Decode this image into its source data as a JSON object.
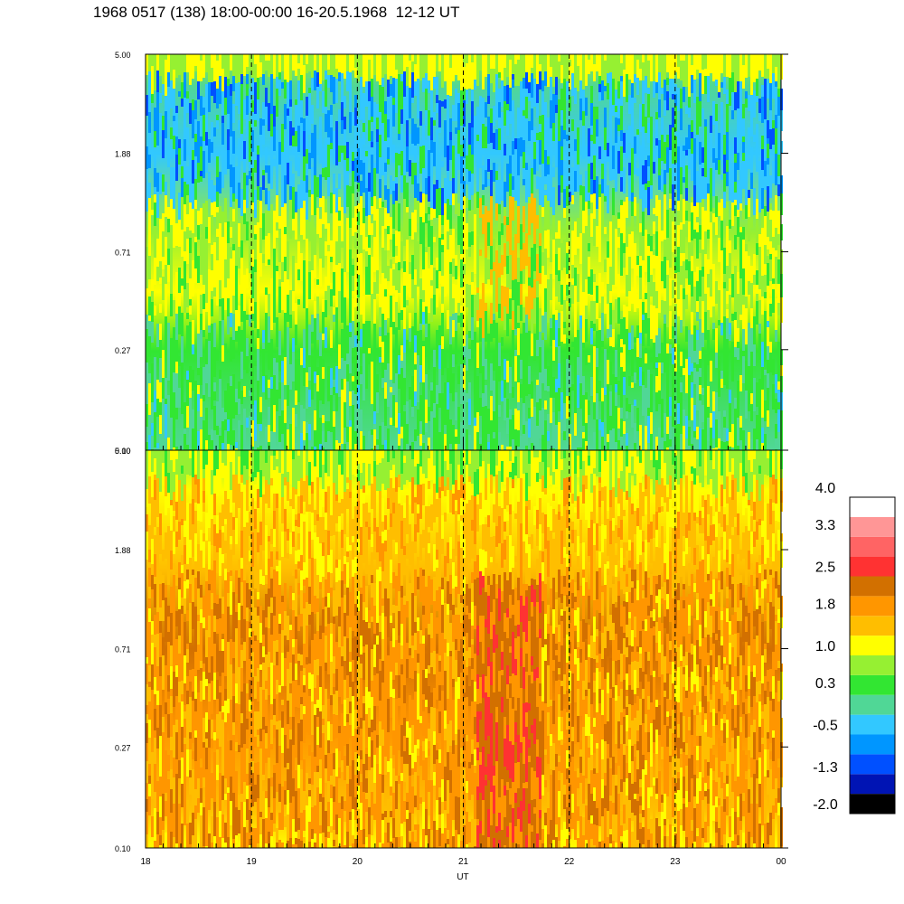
{
  "header": {
    "title": "1968 0517 (138) 18:00-00:00 16-20.5.1968  12-12 UT"
  },
  "colors": {
    "levels": [
      "#000000",
      "#0014b4",
      "#0050ff",
      "#0096ff",
      "#32c8ff",
      "#50d796",
      "#32e632",
      "#96f032",
      "#ffff00",
      "#ffbe00",
      "#ff9600",
      "#d27000",
      "#ff3232",
      "#ff6464",
      "#ff9696",
      "#ffffff"
    ]
  },
  "chart_data": [
    {
      "type": "heatmap",
      "title": "",
      "xlabel": "UT",
      "ylabel": "",
      "x_ticks": [
        "18",
        "19",
        "20",
        "21",
        "22",
        "23",
        "00"
      ],
      "y_ticks": [
        "0.10",
        "0.27",
        "0.71",
        "1.88",
        "5.00"
      ],
      "xlim": [
        18,
        24
      ],
      "ylim": [
        0.1,
        5.0
      ],
      "y_scale": "log",
      "vertical_reference_lines": [
        19,
        20,
        21,
        22,
        23
      ],
      "value_range": [
        -2.0,
        1.8
      ],
      "dominant_levels": [
        "green",
        "yellow",
        "light-blue",
        "blue"
      ]
    },
    {
      "type": "heatmap",
      "title": "",
      "xlabel": "UT",
      "ylabel": "",
      "x_ticks": [
        "18",
        "19",
        "20",
        "21",
        "22",
        "23",
        "00"
      ],
      "y_ticks": [
        "0.10",
        "0.27",
        "0.71",
        "1.88",
        "5.00"
      ],
      "xlim": [
        18,
        24
      ],
      "ylim": [
        0.1,
        5.0
      ],
      "y_scale": "log",
      "vertical_reference_lines": [
        19,
        20,
        21,
        22,
        23
      ],
      "value_range": [
        0.3,
        2.5
      ],
      "dominant_levels": [
        "yellow",
        "orange",
        "dark-orange",
        "red"
      ]
    }
  ],
  "colorbar": {
    "labels": [
      "4.0",
      "3.3",
      "2.5",
      "1.8",
      "1.0",
      "0.3",
      "-0.5",
      "-1.3",
      "-2.0"
    ],
    "range": [
      -2.0,
      4.0
    ],
    "placement": "right"
  }
}
